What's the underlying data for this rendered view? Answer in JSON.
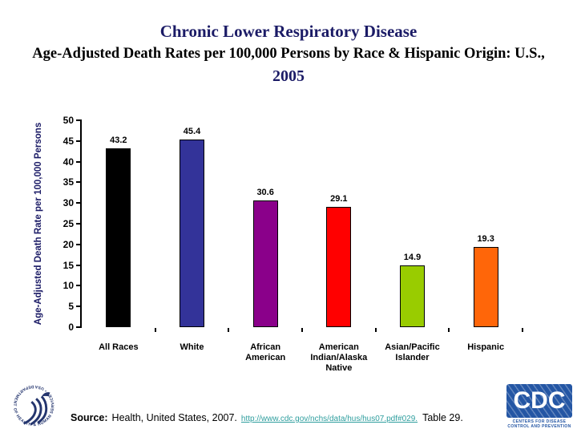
{
  "header": {
    "title": "Chronic Lower Respiratory Disease",
    "subtitle": "Age-Adjusted Death Rates per 100,000 Persons by Race & Hispanic Origin: U.S.,",
    "year": "2005"
  },
  "chart_data": {
    "type": "bar",
    "title": "Chronic Lower Respiratory Disease, Age-Adjusted Death Rates per 100,000 Persons by Race & Hispanic Origin: U.S., 2005",
    "categories": [
      "All Races",
      "White",
      "African American",
      "American Indian/Alaska Native",
      "Asian/Pacific Islander",
      "Hispanic"
    ],
    "category_lines": [
      [
        "All Races"
      ],
      [
        "White"
      ],
      [
        "African",
        "American"
      ],
      [
        "American",
        "Indian/Alaska",
        "Native"
      ],
      [
        "Asian/Pacific",
        "Islander"
      ],
      [
        "Hispanic"
      ]
    ],
    "values": [
      43.2,
      45.4,
      30.6,
      29.1,
      14.9,
      19.3
    ],
    "bar_colors": [
      "#000000",
      "#333399",
      "#8A008A",
      "#FF0000",
      "#99CC00",
      "#FF6609"
    ],
    "xlabel": "",
    "ylabel": "Age-Adjusted Death Rate per 100,000 Persons",
    "ylim": [
      0,
      50
    ],
    "ytick_step": 5,
    "grid": false,
    "legend": "none",
    "value_labels_shown": true
  },
  "footer": {
    "source_label": "Source:",
    "source_text": "Health, United States, 2007.",
    "source_link": "http://www.cdc.gov/nchs/data/hus/hus07.pdf#029.",
    "source_suffix": "Table 29."
  },
  "logos": {
    "hhs_ring_text": "DEPARTMENT OF HEALTH & HUMAN SERVICES • USA",
    "cdc_text": "CDC",
    "cdc_caption_line1": "CENTERS FOR DISEASE",
    "cdc_caption_line2": "CONTROL AND PREVENTION"
  },
  "colors": {
    "navy": "#1B1B66",
    "link_teal": "#2E9E9E",
    "cdc_blue": "#2456A4",
    "hhs_navy": "#24356E"
  }
}
